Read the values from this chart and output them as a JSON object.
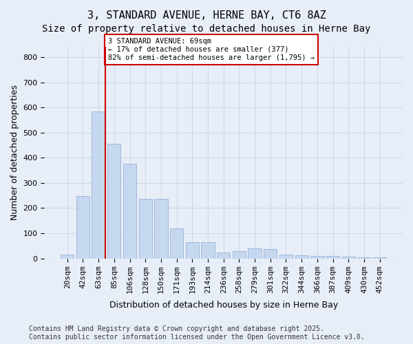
{
  "title1": "3, STANDARD AVENUE, HERNE BAY, CT6 8AZ",
  "title2": "Size of property relative to detached houses in Herne Bay",
  "xlabel": "Distribution of detached houses by size in Herne Bay",
  "ylabel": "Number of detached properties",
  "categories": [
    "20sqm",
    "42sqm",
    "63sqm",
    "85sqm",
    "106sqm",
    "128sqm",
    "150sqm",
    "171sqm",
    "193sqm",
    "214sqm",
    "236sqm",
    "258sqm",
    "279sqm",
    "301sqm",
    "322sqm",
    "344sqm",
    "366sqm",
    "387sqm",
    "409sqm",
    "430sqm",
    "452sqm"
  ],
  "values": [
    15,
    248,
    585,
    455,
    375,
    238,
    238,
    120,
    65,
    65,
    25,
    28,
    40,
    38,
    15,
    12,
    10,
    10,
    8,
    4,
    4
  ],
  "bar_color": "#c5d8f0",
  "bar_edge_color": "#a0b8d8",
  "grid_color": "#d0d8e8",
  "bg_color": "#e8eef8",
  "vline_x_index": 2,
  "vline_color": "#cc0000",
  "annotation_text": "3 STANDARD AVENUE: 69sqm\n← 17% of detached houses are smaller (377)\n82% of semi-detached houses are larger (1,795) →",
  "annotation_box_color": "#ffffff",
  "annotation_box_edge": "#cc0000",
  "ylim": [
    0,
    840
  ],
  "yticks": [
    0,
    100,
    200,
    300,
    400,
    500,
    600,
    700,
    800
  ],
  "footer": "Contains HM Land Registry data © Crown copyright and database right 2025.\nContains public sector information licensed under the Open Government Licence v3.0.",
  "title_fontsize": 11,
  "subtitle_fontsize": 10,
  "tick_fontsize": 8,
  "label_fontsize": 9,
  "footer_fontsize": 7
}
